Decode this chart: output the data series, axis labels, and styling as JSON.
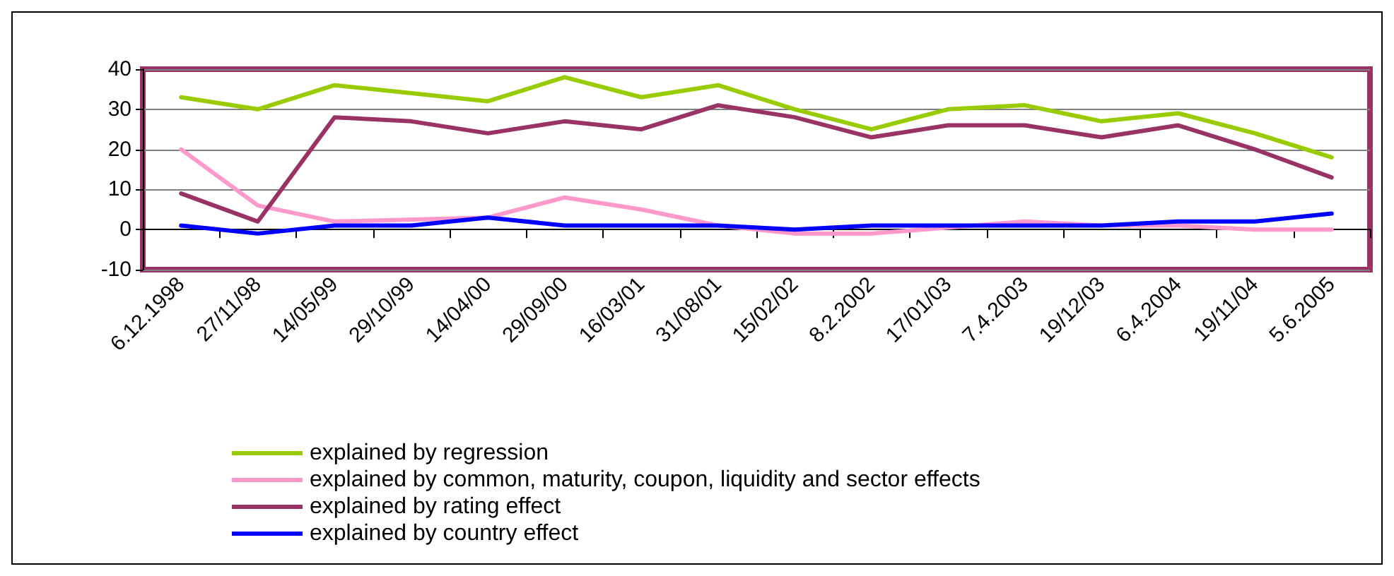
{
  "chart_data": {
    "type": "line",
    "categories": [
      "6.12.1998",
      "27/11/98",
      "14/05/99",
      "29/10/99",
      "14/04/00",
      "29/09/00",
      "16/03/01",
      "31/08/01",
      "15/02/02",
      "8.2.2002",
      "17/01/03",
      "7.4.2003",
      "19/12/03",
      "6.4.2004",
      "19/11/04",
      "5.6.2005"
    ],
    "series": [
      {
        "name": "explained by regression",
        "color": "#99cc00",
        "values": [
          33,
          30,
          36,
          34,
          32,
          38,
          33,
          36,
          30,
          25,
          30,
          31,
          27,
          29,
          24,
          18
        ]
      },
      {
        "name": "explained by common, maturity, coupon, liquidity and sector effects",
        "color": "#ff99cc",
        "values": [
          20,
          6,
          2,
          null,
          3,
          8,
          5,
          1,
          -1,
          -1,
          null,
          2,
          1,
          1,
          0,
          0
        ]
      },
      {
        "name": "explained by rating effect",
        "color": "#993366",
        "values": [
          9,
          2,
          28,
          27,
          24,
          27,
          25,
          31,
          28,
          23,
          26,
          26,
          23,
          26,
          20,
          13
        ]
      },
      {
        "name": "explained by country effect",
        "color": "#0000ff",
        "values": [
          1,
          -1,
          1,
          1,
          3,
          1,
          1,
          1,
          0,
          1,
          1,
          1,
          1,
          2,
          2,
          4
        ]
      }
    ],
    "ylim": [
      -10,
      40
    ],
    "yticks": [
      -10,
      0,
      10,
      20,
      30,
      40
    ],
    "grid": "y",
    "legend": "bottom",
    "marker": "none",
    "line_style": "solid"
  }
}
